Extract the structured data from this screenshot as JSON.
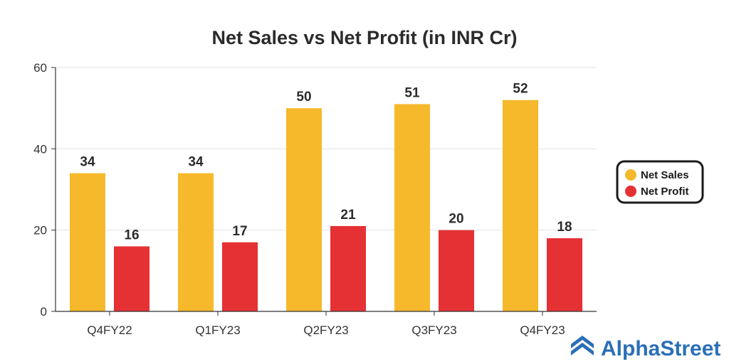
{
  "chart_data": {
    "type": "bar",
    "title": "Net Sales vs Net Profit (in INR Cr)",
    "xlabel": "",
    "ylabel": "",
    "categories": [
      "Q4FY22",
      "Q1FY23",
      "Q2FY23",
      "Q3FY23",
      "Q4FY23"
    ],
    "series": [
      {
        "name": "Net Sales",
        "values": [
          34,
          34,
          50,
          51,
          52
        ],
        "labels": [
          "34",
          "34",
          "50",
          "51",
          "52"
        ],
        "color": "#f6b92b"
      },
      {
        "name": "Net Profit",
        "values": [
          16,
          17,
          21,
          20,
          18
        ],
        "labels": [
          "16",
          "17",
          "21",
          "20",
          "18"
        ],
        "color": "#e53134"
      }
    ],
    "ylim": [
      0,
      60
    ],
    "yticks": [
      0,
      20,
      40,
      60
    ],
    "grid": true,
    "legend": "right"
  },
  "brand": {
    "name": "AlphaStreet",
    "color": "#2a6fb6"
  }
}
